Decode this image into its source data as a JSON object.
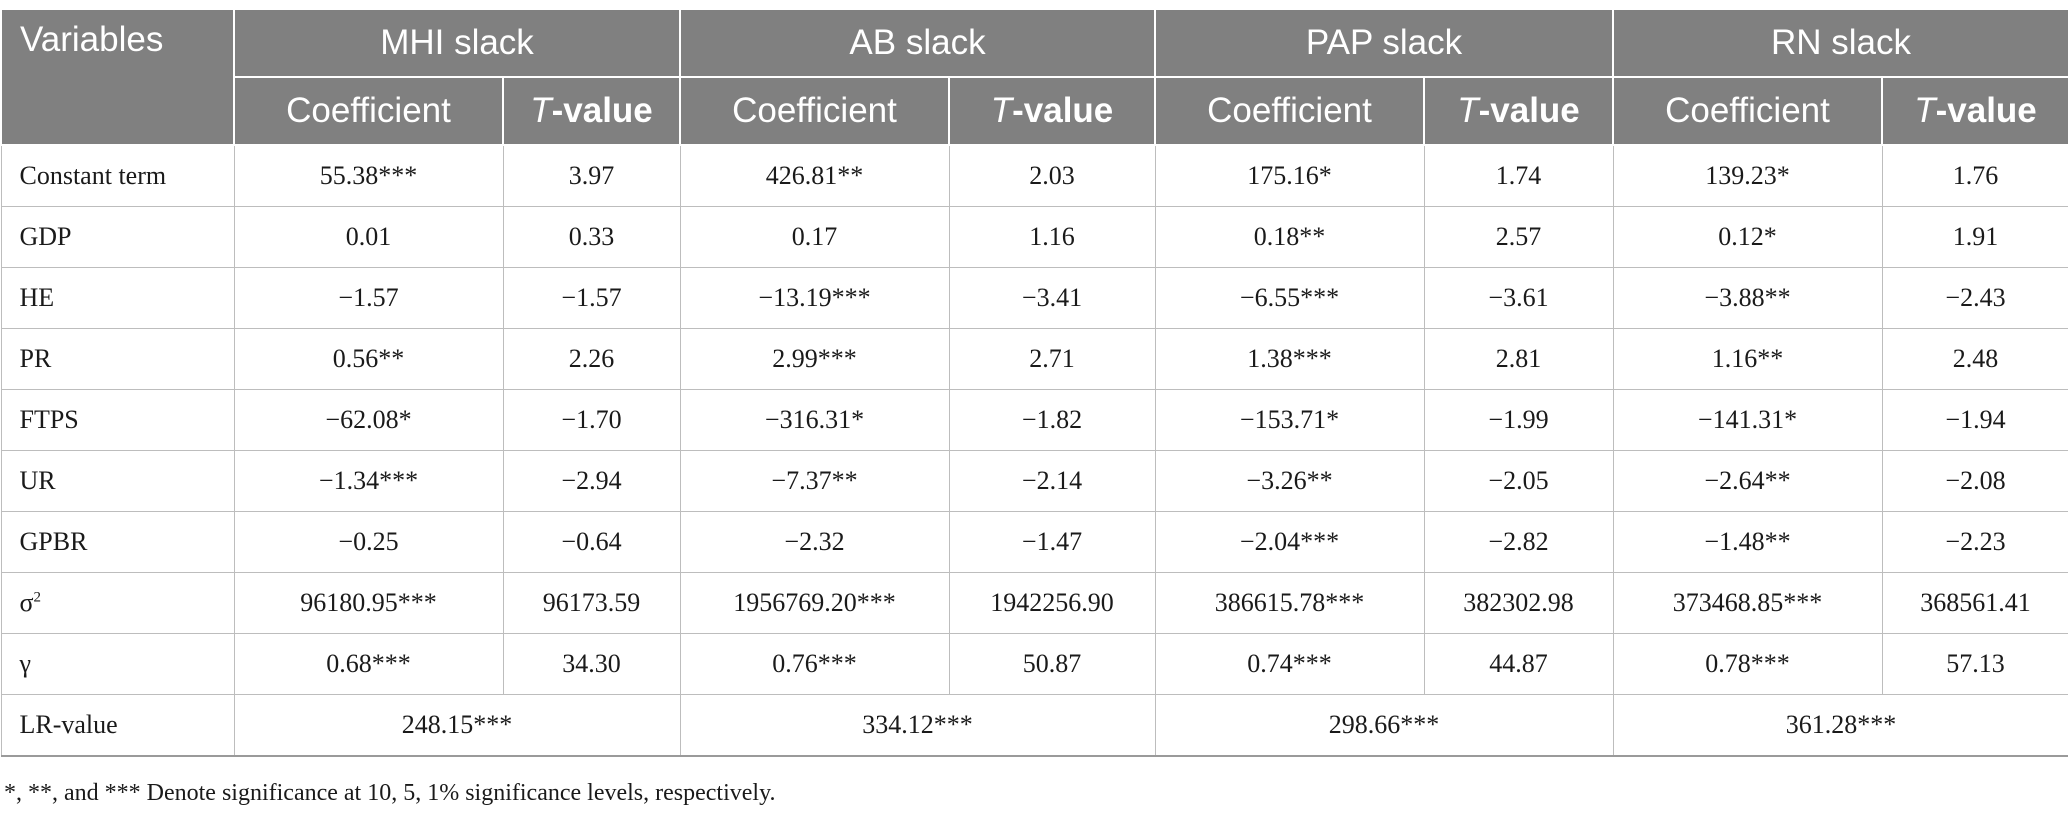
{
  "header": {
    "variables": "Variables",
    "groups": [
      "MHI slack",
      "AB slack",
      "PAP slack",
      "RN slack"
    ],
    "coef": "Coefficient",
    "t_italic": "T",
    "t_rest": "-value"
  },
  "rows": [
    {
      "name": "Constant term",
      "v": [
        "55.38***",
        "3.97",
        "426.81**",
        "2.03",
        "175.16*",
        "1.74",
        "139.23*",
        "1.76"
      ]
    },
    {
      "name": "GDP",
      "v": [
        "0.01",
        "0.33",
        "0.17",
        "1.16",
        "0.18**",
        "2.57",
        "0.12*",
        "1.91"
      ]
    },
    {
      "name": "HE",
      "v": [
        "−1.57",
        "−1.57",
        "−13.19***",
        "−3.41",
        "−6.55***",
        "−3.61",
        "−3.88**",
        "−2.43"
      ]
    },
    {
      "name": "PR",
      "v": [
        "0.56**",
        "2.26",
        "2.99***",
        "2.71",
        "1.38***",
        "2.81",
        "1.16**",
        "2.48"
      ]
    },
    {
      "name": "FTPS",
      "v": [
        "−62.08*",
        "−1.70",
        "−316.31*",
        "−1.82",
        "−153.71*",
        "−1.99",
        "−141.31*",
        "−1.94"
      ]
    },
    {
      "name": "UR",
      "v": [
        "−1.34***",
        "−2.94",
        "−7.37**",
        "−2.14",
        "−3.26**",
        "−2.05",
        "−2.64**",
        "−2.08"
      ]
    },
    {
      "name": "GPBR",
      "v": [
        "−0.25",
        "−0.64",
        "−2.32",
        "−1.47",
        "−2.04***",
        "−2.82",
        "−1.48**",
        "−2.23"
      ]
    },
    {
      "name_base": "σ",
      "name_sup": "2",
      "v": [
        "96180.95***",
        "96173.59",
        "1956769.20***",
        "1942256.90",
        "386615.78***",
        "382302.98",
        "373468.85***",
        "368561.41"
      ]
    },
    {
      "name": "γ",
      "v": [
        "0.68***",
        "34.30",
        "0.76***",
        "50.87",
        "0.74***",
        "44.87",
        "0.78***",
        "57.13"
      ]
    }
  ],
  "lr_row": {
    "name": "LR-value",
    "v": [
      "248.15***",
      "334.12***",
      "298.66***",
      "361.28***"
    ]
  },
  "note": "*, **, and *** Denote significance at 10, 5, 1% significance levels, respectively."
}
